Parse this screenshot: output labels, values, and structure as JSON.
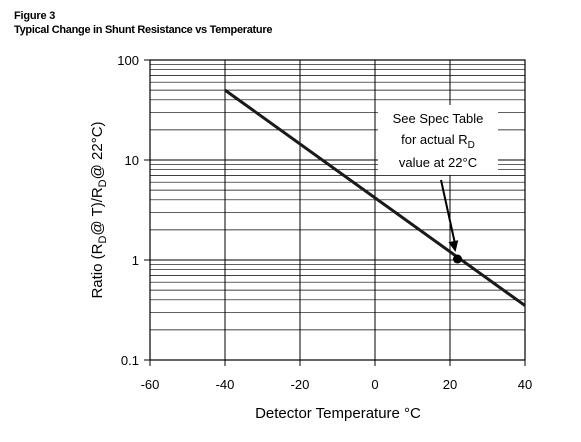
{
  "figure": {
    "label": "Figure 3",
    "title": "Typical Change in Shunt Resistance vs Temperature"
  },
  "chart_data": {
    "type": "line",
    "x_scale": "linear",
    "y_scale": "log",
    "xlim": [
      -60,
      40
    ],
    "ylim": [
      0.1,
      100
    ],
    "x_ticks": [
      -60,
      -40,
      -20,
      0,
      20,
      40
    ],
    "x_tick_labels": [
      "-60",
      "-40",
      "-20",
      "0",
      "20",
      "40"
    ],
    "y_ticks": [
      0.1,
      1,
      10,
      100
    ],
    "y_tick_labels": [
      "0.1",
      "1",
      "10",
      "100"
    ],
    "xlabel": "Detector Temperature °C",
    "ylabel_parts": [
      "Ratio (R",
      "D",
      "@ T)/R",
      "D",
      "@ 22°C)"
    ],
    "grid": true,
    "series": [
      {
        "x": [
          -40,
          40
        ],
        "y": [
          50,
          0.35
        ]
      }
    ],
    "reference_point": {
      "x": 22,
      "y": 1
    },
    "annotation": {
      "line1": "See Spec Table",
      "line2_main": "for actual R",
      "line2_sub": "D",
      "line3": "value at 22°C"
    },
    "colors": {
      "line": "#1a1a1a",
      "grid": "#000000"
    }
  }
}
